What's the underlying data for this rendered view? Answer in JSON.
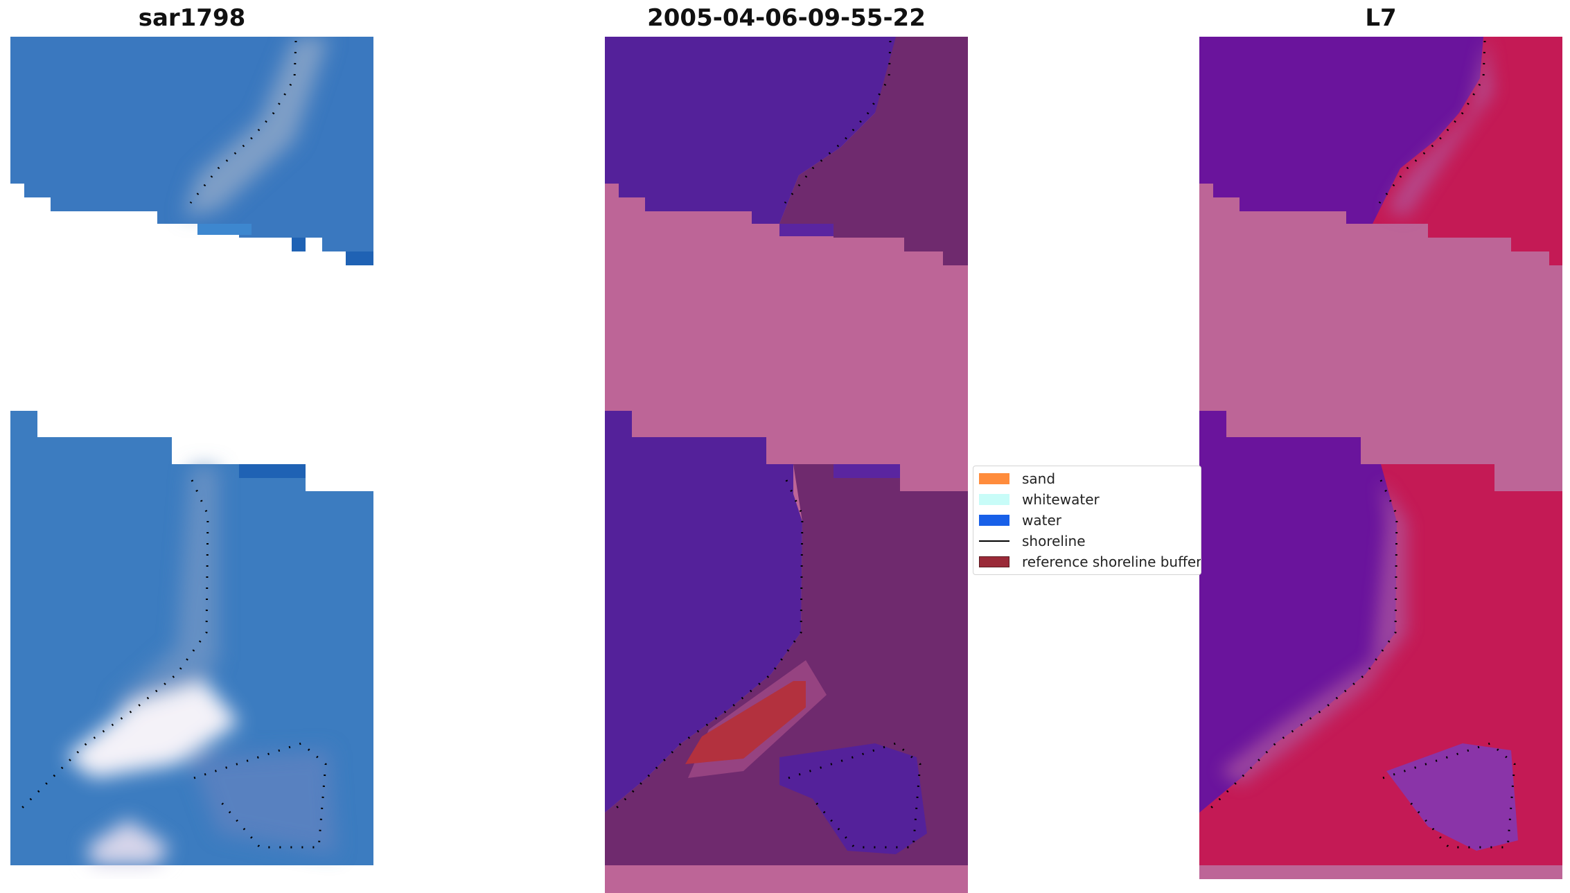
{
  "panels": [
    {
      "id": "rgb",
      "title": "sar1798"
    },
    {
      "id": "classified",
      "title": "2005-04-06-09-55-22"
    },
    {
      "id": "mndwi",
      "title": "L7"
    }
  ],
  "legend": {
    "items": [
      {
        "label": "sand",
        "type": "patch",
        "color": "#ff8c3c"
      },
      {
        "label": "whitewater",
        "type": "patch",
        "color": "#c8fcf8"
      },
      {
        "label": "water",
        "type": "patch",
        "color": "#1860e8"
      },
      {
        "label": "shoreline",
        "type": "line",
        "color": "#000000"
      },
      {
        "label": "reference shoreline buffer",
        "type": "patch",
        "color": "#9a2a38"
      }
    ]
  },
  "colors": {
    "rgb_water": "#3a7ac0",
    "class_water": "#54219a",
    "class_land": "#6f2a6e",
    "class_nodata": "#bd6597",
    "mndwi_water": "#6a149c",
    "mndwi_land": "#c41a55"
  }
}
